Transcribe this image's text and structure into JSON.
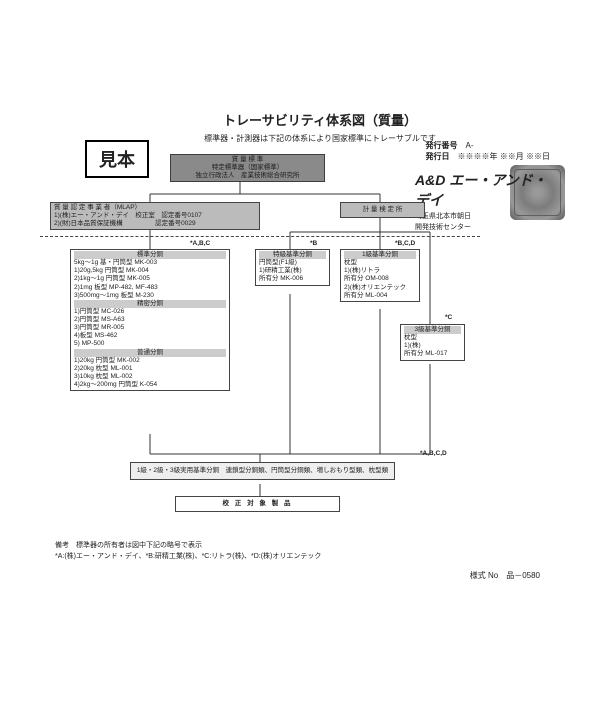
{
  "stamp": "見本",
  "header": {
    "issue_no_label": "発行番号",
    "issue_no": "A-",
    "issue_date_label": "発行日",
    "issue_date": "※※※※年 ※※月 ※※日"
  },
  "logo": {
    "brand": "A&D エー・アンド・デイ",
    "addr1": "埼玉県北本市朝日",
    "addr2": "開発技術センター"
  },
  "title": "トレーサビリティ体系図（質量）",
  "subtitle": "標準器・計測器は下記の体系により国家標準にトレーサブルです",
  "top_box": {
    "l1": "質 量 標 準",
    "l2": "特定標準器（国家標準）",
    "l3": "独立行政法人　産業技術総合研究所"
  },
  "left_auth": {
    "l1": "質 量 認 定 事 業 者（MLAP）",
    "l2": "1)(株)エー・アンド・デイ　校正室　認定番号0107",
    "l3": "2)(財)日本品質保証機構　　　　　認定番号0029"
  },
  "right_auth": "計 量 検 定 所",
  "tags": {
    "abc": "*A,B,C",
    "b": "*B",
    "bcd": "*B,C,D",
    "c": "*C",
    "abcd": "*A,B,C,D"
  },
  "col1": {
    "title": "標準分銅",
    "rows": [
      "5kg～1g 基・円筒型 MK-003",
      "1)20g,5kg 円筒型 MK-004",
      "2)1kg～1g 円筒型 MK-005",
      "2)1mg 板型 MP-482, MF-483",
      "3)500mg～1mg 板型 M-230",
      "精密分銅",
      "1)円筒型 MC-026",
      "2)円筒型 MS-A63",
      "3)円筒型 MR-005",
      "4)板型 MS-462",
      "5) MP-500",
      "普通分銅",
      "1)20kg 円筒型 MK-002",
      "2)20kg 枕型 ML-001",
      "3)10kg 枕型 ML-002",
      "4)2kg～200mg 円筒型 K-054"
    ]
  },
  "col2": {
    "title": "特級基準分銅",
    "rows": [
      "円筒型(F1級)",
      "1)研精工業(株)",
      "所有分 MK-006"
    ]
  },
  "col3": {
    "title": "1級基準分銅",
    "rows": [
      "枕型",
      "1)(株)リトラ",
      "所有分 OM-008",
      "2)(株)オリエンテック",
      "所有分 ML-004"
    ]
  },
  "col4": {
    "title": "3級基準分銅",
    "rows": [
      "枕型",
      "1)(株)",
      "所有分 ML-017"
    ]
  },
  "bottom_box": "1級・2級・3級実用基準分銅　連鎖型分銅類、円筒型分銅類、増しおもり型類、枕型類",
  "target_box": "校 正 対 象 製 品",
  "notes": {
    "l1": "備考　標準器の所有者は図中下記の略号で表示",
    "l2": "*A:(株)エー・アンド・デイ、*B:研精工業(株)、*C:リトラ(株)、*D:(株)オリエンテック"
  },
  "form_no": "様式 No　品－0580"
}
